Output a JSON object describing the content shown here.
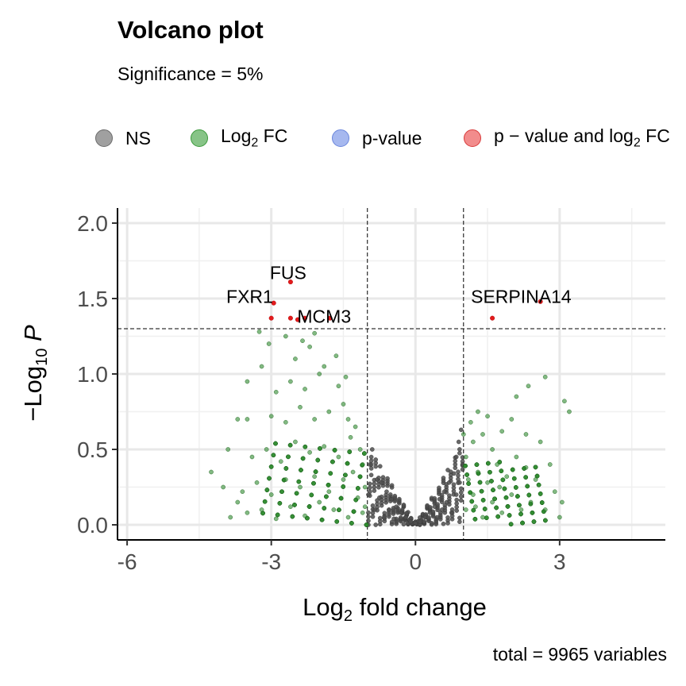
{
  "chart_data": {
    "type": "scatter",
    "title": "Volcano plot",
    "subtitle": "Significance = 5%",
    "caption": "total = 9965 variables",
    "xlabel": {
      "prefix": "Log",
      "sub": "2",
      "suffix": " fold change"
    },
    "ylabel": {
      "prefix": "−Log",
      "sub": "10",
      "suffix": " P"
    },
    "xlim": [
      -6.2,
      5.2
    ],
    "ylim": [
      -0.1,
      2.1
    ],
    "x_ticks": [
      -6,
      -3,
      0,
      3
    ],
    "x_tick_labels": [
      "-6",
      "-3",
      "0",
      "3"
    ],
    "y_ticks": [
      0.0,
      0.5,
      1.0,
      1.5,
      2.0
    ],
    "y_tick_labels": [
      "0.0",
      "0.5",
      "1.0",
      "1.5",
      "2.0"
    ],
    "grid": true,
    "fc_cutoffs": [
      -1,
      1
    ],
    "p_cutoff_neglog10": 1.3,
    "legend_position": "top",
    "legend": [
      {
        "key": "NS",
        "label": "NS",
        "color": "#a0a0a0",
        "border": "#6b6b6b"
      },
      {
        "key": "FC",
        "label_prefix": "Log",
        "label_sub": "2",
        "label_suffix": " FC",
        "color": "#87c487",
        "border": "#3c9a3c"
      },
      {
        "key": "P",
        "label": "p-value",
        "color": "#a6b8ef",
        "border": "#6a86dc"
      },
      {
        "key": "FC_P",
        "label_prefix": "p − value and log",
        "label_sub": "2",
        "label_suffix": " FC",
        "color": "#f28c8c",
        "border": "#d83a3a"
      }
    ],
    "colors": {
      "NS": "#4d4d4d",
      "FC": "#2e8b2e",
      "P": "#4169e1",
      "FC_P": "#e31a1c"
    },
    "series": [
      {
        "name": "p − value and log₂ FC",
        "points": [
          {
            "x": -3.0,
            "y": 1.37
          },
          {
            "x": -2.95,
            "y": 1.47
          },
          {
            "x": -2.6,
            "y": 1.37
          },
          {
            "x": -2.45,
            "y": 1.36
          },
          {
            "x": -2.3,
            "y": 1.37
          },
          {
            "x": -1.78,
            "y": 1.37
          },
          {
            "x": -2.6,
            "y": 1.61
          },
          {
            "x": 1.6,
            "y": 1.37
          },
          {
            "x": 2.6,
            "y": 1.48
          }
        ]
      }
    ],
    "labels": [
      {
        "text": "FUS",
        "x": -2.65,
        "y": 1.63
      },
      {
        "text": "FXR1",
        "x": -3.45,
        "y": 1.47
      },
      {
        "text": "MCM3",
        "x": -1.9,
        "y": 1.34
      },
      {
        "text": "SERPINA14",
        "x": 2.2,
        "y": 1.47
      }
    ],
    "ns_points": [
      {
        "x": -0.95,
        "y": 0.4
      },
      {
        "x": -0.9,
        "y": 0.5
      },
      {
        "x": -0.8,
        "y": 0.3
      },
      {
        "x": -0.7,
        "y": 0.28
      },
      {
        "x": -0.6,
        "y": 0.22
      },
      {
        "x": -0.5,
        "y": 0.17
      },
      {
        "x": -0.4,
        "y": 0.12
      },
      {
        "x": -0.3,
        "y": 0.08
      },
      {
        "x": -0.2,
        "y": 0.05
      },
      {
        "x": -0.1,
        "y": 0.02
      },
      {
        "x": 0.0,
        "y": 0.01
      },
      {
        "x": 0.1,
        "y": 0.02
      },
      {
        "x": 0.2,
        "y": 0.05
      },
      {
        "x": 0.3,
        "y": 0.08
      },
      {
        "x": 0.4,
        "y": 0.12
      },
      {
        "x": 0.5,
        "y": 0.17
      },
      {
        "x": 0.6,
        "y": 0.22
      },
      {
        "x": 0.7,
        "y": 0.28
      },
      {
        "x": 0.8,
        "y": 0.34
      },
      {
        "x": 0.85,
        "y": 0.45
      },
      {
        "x": 0.9,
        "y": 0.55
      },
      {
        "x": 0.95,
        "y": 0.63
      },
      {
        "x": -0.85,
        "y": 0.1
      },
      {
        "x": -0.75,
        "y": 0.18
      },
      {
        "x": -0.65,
        "y": 0.05
      },
      {
        "x": -0.55,
        "y": 0.1
      },
      {
        "x": -0.45,
        "y": 0.04
      },
      {
        "x": 0.45,
        "y": 0.05
      },
      {
        "x": 0.55,
        "y": 0.1
      },
      {
        "x": 0.65,
        "y": 0.15
      },
      {
        "x": 0.75,
        "y": 0.08
      },
      {
        "x": 0.85,
        "y": 0.2
      },
      {
        "x": -0.98,
        "y": 0.2
      },
      {
        "x": -0.92,
        "y": 0.33
      },
      {
        "x": 0.92,
        "y": 0.28
      },
      {
        "x": 0.98,
        "y": 0.4
      }
    ],
    "fc_points": [
      {
        "x": -3.85,
        "y": 0.05
      },
      {
        "x": -3.5,
        "y": 0.08
      },
      {
        "x": -3.2,
        "y": 0.1
      },
      {
        "x": -2.9,
        "y": 0.04
      },
      {
        "x": -2.6,
        "y": 0.12
      },
      {
        "x": -2.3,
        "y": 0.06
      },
      {
        "x": -2.0,
        "y": 0.15
      },
      {
        "x": -1.7,
        "y": 0.1
      },
      {
        "x": -1.4,
        "y": 0.05
      },
      {
        "x": -1.2,
        "y": 0.18
      },
      {
        "x": -1.1,
        "y": 0.08
      },
      {
        "x": -1.05,
        "y": 0.25
      },
      {
        "x": -3.6,
        "y": 0.22
      },
      {
        "x": -3.3,
        "y": 0.28
      },
      {
        "x": -3.0,
        "y": 0.2
      },
      {
        "x": -2.7,
        "y": 0.3
      },
      {
        "x": -2.4,
        "y": 0.25
      },
      {
        "x": -2.1,
        "y": 0.32
      },
      {
        "x": -1.8,
        "y": 0.22
      },
      {
        "x": -1.5,
        "y": 0.3
      },
      {
        "x": -1.3,
        "y": 0.35
      },
      {
        "x": -3.4,
        "y": 0.45
      },
      {
        "x": -3.1,
        "y": 0.5
      },
      {
        "x": -2.8,
        "y": 0.42
      },
      {
        "x": -2.5,
        "y": 0.55
      },
      {
        "x": -2.2,
        "y": 0.48
      },
      {
        "x": -1.9,
        "y": 0.52
      },
      {
        "x": -1.6,
        "y": 0.45
      },
      {
        "x": -1.35,
        "y": 0.58
      },
      {
        "x": -3.0,
        "y": 0.72
      },
      {
        "x": -2.7,
        "y": 0.68
      },
      {
        "x": -2.4,
        "y": 0.78
      },
      {
        "x": -2.1,
        "y": 0.7
      },
      {
        "x": -1.8,
        "y": 0.75
      },
      {
        "x": -1.5,
        "y": 0.8
      },
      {
        "x": -3.5,
        "y": 0.7
      },
      {
        "x": -2.9,
        "y": 0.88
      },
      {
        "x": -2.6,
        "y": 0.95
      },
      {
        "x": -2.3,
        "y": 0.9
      },
      {
        "x": -2.0,
        "y": 1.0
      },
      {
        "x": -1.6,
        "y": 0.92
      },
      {
        "x": -3.2,
        "y": 1.05
      },
      {
        "x": -2.5,
        "y": 1.1
      },
      {
        "x": -2.2,
        "y": 1.18
      },
      {
        "x": -1.9,
        "y": 1.05
      },
      {
        "x": -3.05,
        "y": 1.2
      },
      {
        "x": -2.7,
        "y": 1.25
      },
      {
        "x": -2.35,
        "y": 1.22
      },
      {
        "x": -3.25,
        "y": 1.28
      },
      {
        "x": -2.1,
        "y": 1.27
      },
      {
        "x": -4.25,
        "y": 0.35
      },
      {
        "x": -4.0,
        "y": 0.25
      },
      {
        "x": -3.9,
        "y": 0.5
      },
      {
        "x": -3.7,
        "y": 0.7
      },
      {
        "x": -3.5,
        "y": 0.95
      },
      {
        "x": -3.7,
        "y": 0.15
      },
      {
        "x": -1.25,
        "y": 0.65
      },
      {
        "x": -1.15,
        "y": 0.5
      },
      {
        "x": -1.1,
        "y": 0.4
      },
      {
        "x": -1.45,
        "y": 0.98
      },
      {
        "x": -1.65,
        "y": 1.12
      },
      {
        "x": -1.4,
        "y": 0.7
      },
      {
        "x": -1.05,
        "y": 0.12
      },
      {
        "x": 1.05,
        "y": 0.1
      },
      {
        "x": 1.2,
        "y": 0.2
      },
      {
        "x": 1.4,
        "y": 0.05
      },
      {
        "x": 1.6,
        "y": 0.15
      },
      {
        "x": 1.8,
        "y": 0.08
      },
      {
        "x": 2.0,
        "y": 0.2
      },
      {
        "x": 2.2,
        "y": 0.1
      },
      {
        "x": 2.4,
        "y": 0.15
      },
      {
        "x": 2.7,
        "y": 0.1
      },
      {
        "x": 3.0,
        "y": 0.05
      },
      {
        "x": 1.1,
        "y": 0.3
      },
      {
        "x": 1.3,
        "y": 0.35
      },
      {
        "x": 1.5,
        "y": 0.28
      },
      {
        "x": 1.7,
        "y": 0.4
      },
      {
        "x": 1.9,
        "y": 0.32
      },
      {
        "x": 2.1,
        "y": 0.45
      },
      {
        "x": 2.3,
        "y": 0.38
      },
      {
        "x": 2.5,
        "y": 0.3
      },
      {
        "x": 2.8,
        "y": 0.4
      },
      {
        "x": 1.2,
        "y": 0.55
      },
      {
        "x": 1.4,
        "y": 0.6
      },
      {
        "x": 1.6,
        "y": 0.5
      },
      {
        "x": 1.8,
        "y": 0.62
      },
      {
        "x": 2.0,
        "y": 0.7
      },
      {
        "x": 2.3,
        "y": 0.6
      },
      {
        "x": 2.6,
        "y": 0.55
      },
      {
        "x": 1.3,
        "y": 0.75
      },
      {
        "x": 1.5,
        "y": 0.72
      },
      {
        "x": 1.15,
        "y": 0.68
      },
      {
        "x": 1.0,
        "y": 0.6
      },
      {
        "x": 2.1,
        "y": 0.85
      },
      {
        "x": 3.1,
        "y": 0.82
      },
      {
        "x": 3.2,
        "y": 0.75
      },
      {
        "x": 2.7,
        "y": 0.98
      },
      {
        "x": 2.35,
        "y": 0.92
      },
      {
        "x": 1.05,
        "y": 0.45
      },
      {
        "x": 1.25,
        "y": 0.12
      },
      {
        "x": 1.75,
        "y": 0.25
      },
      {
        "x": 2.9,
        "y": 0.22
      },
      {
        "x": 3.05,
        "y": 0.15
      }
    ]
  }
}
